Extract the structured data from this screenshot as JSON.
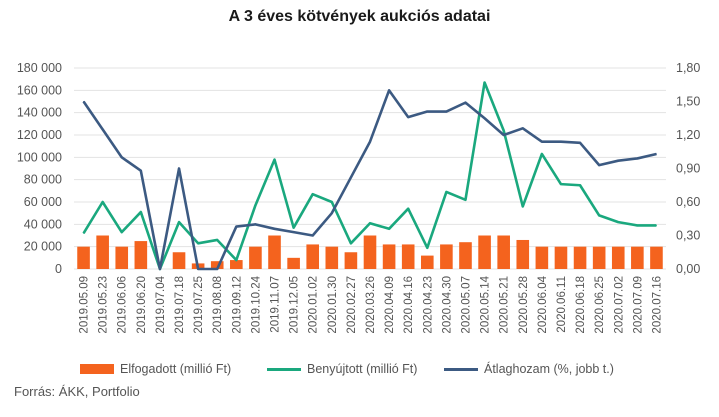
{
  "chart_data": {
    "type": "bar+line",
    "title": "A 3 éves kötvények aukciós adatai",
    "source": "Forrás: ÁKK, Portfolio",
    "categories": [
      "2019.05.09",
      "2019.05.23",
      "2019.06.06",
      "2019.06.20",
      "2019.07.04",
      "2019.07.18",
      "2019.07.25",
      "2019.08.08",
      "2019.09.12",
      "2019.10.24",
      "2019.11.07",
      "2019.12.05",
      "2020.01.02",
      "2020.01.30",
      "2020.02.27",
      "2020.03.26",
      "2020.04.09",
      "2020.04.16",
      "2020.04.23",
      "2020.04.30",
      "2020.05.07",
      "2020.05.14",
      "2020.05.21",
      "2020.05.28",
      "2020.06.04",
      "2020.06.11",
      "2020.06.18",
      "2020.06.25",
      "2020.07.02",
      "2020.07.09",
      "2020.07.16"
    ],
    "y_left": {
      "range": [
        0,
        180000
      ],
      "ticks": [
        "0",
        "20 000",
        "40 000",
        "60 000",
        "80 000",
        "100 000",
        "120 000",
        "140 000",
        "160 000",
        "180 000"
      ]
    },
    "y_right": {
      "range": [
        0,
        1.8
      ],
      "ticks": [
        "0,00",
        "0,30",
        "0,60",
        "0,90",
        "1,20",
        "1,50",
        "1,80"
      ]
    },
    "grid": true,
    "legend_position": "bottom",
    "colors": {
      "bars": "#f4631e",
      "submitted": "#1aa87e",
      "yield": "#3c5a82",
      "grid": "#e3e3e3",
      "axis_text": "#555555"
    },
    "series": [
      {
        "name": "Elfogadott (millió Ft)",
        "type": "bar",
        "axis": "left",
        "values": [
          20000,
          30000,
          20000,
          25000,
          0,
          15000,
          5000,
          7000,
          8000,
          20000,
          30000,
          10000,
          22000,
          20000,
          15000,
          30000,
          22000,
          22000,
          12000,
          22000,
          24000,
          30000,
          30000,
          26000,
          20000,
          20000,
          20000,
          20000,
          20000,
          20000,
          20000
        ]
      },
      {
        "name": "Benyújtott (millió Ft)",
        "type": "line",
        "axis": "left",
        "values": [
          32000,
          60000,
          33000,
          51000,
          0,
          42000,
          23000,
          26000,
          8000,
          57000,
          98000,
          37000,
          67000,
          60000,
          23000,
          41000,
          36000,
          54000,
          19000,
          69000,
          62000,
          167000,
          124000,
          56000,
          103000,
          76000,
          75000,
          48000,
          42000,
          39000,
          39000
        ]
      },
      {
        "name": "Átlaghozam (%, jobb t.)",
        "type": "line",
        "axis": "right",
        "values": [
          1.5,
          1.25,
          1.0,
          0.88,
          0.0,
          0.9,
          0.0,
          0.0,
          0.38,
          0.4,
          0.36,
          0.33,
          0.3,
          0.5,
          0.82,
          1.14,
          1.6,
          1.36,
          1.41,
          1.41,
          1.49,
          1.35,
          1.2,
          1.26,
          1.14,
          1.14,
          1.13,
          0.93,
          0.97,
          0.99,
          1.03
        ]
      }
    ]
  }
}
